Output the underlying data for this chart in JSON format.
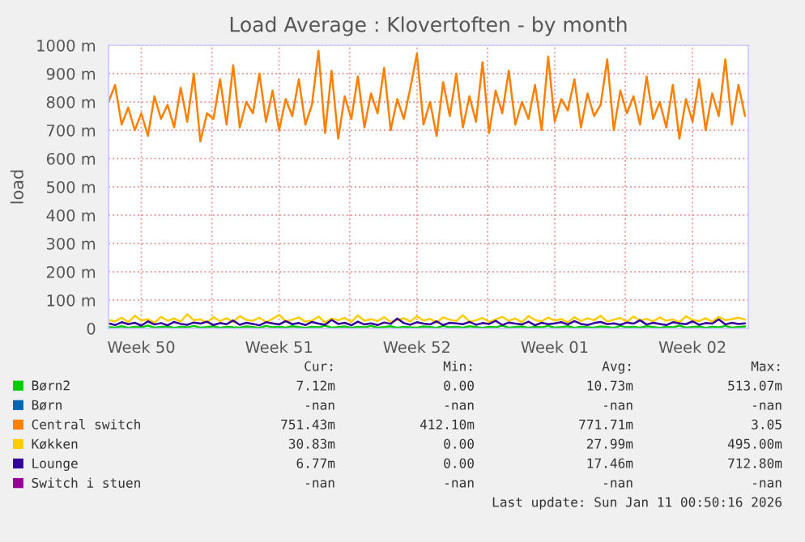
{
  "chart_data": {
    "type": "line",
    "title": "Load Average : Klovertoften - by month",
    "ylabel": "load",
    "x": [
      "2025-12-09T18:00",
      "2025-12-10T02:00",
      "2025-12-10T10:00",
      "2025-12-10T18:00",
      "2025-12-11T02:00",
      "2025-12-11T10:00",
      "2025-12-11T18:00",
      "2025-12-12T02:00",
      "2025-12-12T10:00",
      "2025-12-12T18:00",
      "2025-12-13T02:00",
      "2025-12-13T10:00",
      "2025-12-13T18:00",
      "2025-12-14T02:00",
      "2025-12-14T10:00",
      "2025-12-14T18:00",
      "2025-12-15T02:00",
      "2025-12-15T10:00",
      "2025-12-15T18:00",
      "2025-12-16T02:00",
      "2025-12-16T10:00",
      "2025-12-16T18:00",
      "2025-12-17T02:00",
      "2025-12-17T10:00",
      "2025-12-17T18:00",
      "2025-12-18T02:00",
      "2025-12-18T10:00",
      "2025-12-18T18:00",
      "2025-12-19T02:00",
      "2025-12-19T10:00",
      "2025-12-19T18:00",
      "2025-12-20T02:00",
      "2025-12-20T10:00",
      "2025-12-20T18:00",
      "2025-12-21T02:00",
      "2025-12-21T10:00",
      "2025-12-21T18:00",
      "2025-12-22T02:00",
      "2025-12-22T10:00",
      "2025-12-22T18:00",
      "2025-12-23T02:00",
      "2025-12-23T10:00",
      "2025-12-23T18:00",
      "2025-12-24T02:00",
      "2025-12-24T10:00",
      "2025-12-24T18:00",
      "2025-12-25T02:00",
      "2025-12-25T10:00",
      "2025-12-25T18:00",
      "2025-12-26T02:00",
      "2025-12-26T10:00",
      "2025-12-26T18:00",
      "2025-12-27T02:00",
      "2025-12-27T10:00",
      "2025-12-27T18:00",
      "2025-12-28T02:00",
      "2025-12-28T10:00",
      "2025-12-28T18:00",
      "2025-12-29T02:00",
      "2025-12-29T10:00",
      "2025-12-29T18:00",
      "2025-12-30T02:00",
      "2025-12-30T10:00",
      "2025-12-30T18:00",
      "2025-12-31T02:00",
      "2025-12-31T10:00",
      "2025-12-31T18:00",
      "2026-01-01T02:00",
      "2026-01-01T10:00",
      "2026-01-01T18:00",
      "2026-01-02T02:00",
      "2026-01-02T10:00",
      "2026-01-02T18:00",
      "2026-01-03T02:00",
      "2026-01-03T10:00",
      "2026-01-03T18:00",
      "2026-01-04T02:00",
      "2026-01-04T10:00",
      "2026-01-04T18:00",
      "2026-01-05T02:00",
      "2026-01-05T10:00",
      "2026-01-05T18:00",
      "2026-01-06T02:00",
      "2026-01-06T10:00",
      "2026-01-06T18:00",
      "2026-01-07T02:00",
      "2026-01-07T10:00",
      "2026-01-07T18:00",
      "2026-01-08T02:00",
      "2026-01-08T10:00",
      "2026-01-08T18:00",
      "2026-01-09T02:00",
      "2026-01-09T10:00",
      "2026-01-09T18:00",
      "2026-01-10T02:00",
      "2026-01-10T10:00",
      "2026-01-10T18:00",
      "2026-01-11T02:00"
    ],
    "series": [
      {
        "name": "Børn2",
        "color": "#00cc00",
        "values": [
          5,
          3,
          8,
          2,
          6,
          4,
          10,
          3,
          5,
          7,
          2,
          6,
          4,
          9,
          3,
          5,
          8,
          2,
          6,
          4,
          3,
          7,
          5,
          2,
          9,
          4,
          6,
          3,
          8,
          5,
          2,
          6,
          4,
          10,
          3,
          5,
          7,
          2,
          6,
          4,
          9,
          3,
          5,
          8,
          2,
          6,
          4,
          3,
          7,
          5,
          2,
          9,
          4,
          6,
          3,
          8,
          5,
          2,
          6,
          4,
          10,
          3,
          5,
          7,
          2,
          6,
          4,
          9,
          3,
          5,
          8,
          2,
          6,
          4,
          3,
          7,
          5,
          2,
          9,
          4,
          6,
          3,
          8,
          5,
          2,
          6,
          4,
          10,
          3,
          5,
          7,
          2,
          6,
          4,
          9,
          3,
          5,
          7
        ]
      },
      {
        "name": "Børn",
        "color": "#0066b3",
        "values": [
          null,
          null,
          null,
          null,
          null,
          null,
          null,
          null,
          null,
          null,
          null,
          null,
          null,
          null,
          null,
          null,
          null,
          null,
          null,
          null,
          null,
          null,
          null,
          null,
          null,
          null,
          null,
          null,
          null,
          null,
          null,
          null,
          null,
          null,
          null,
          null,
          null,
          null,
          null,
          null,
          null,
          null,
          null,
          null,
          null,
          null,
          null,
          null,
          null,
          null,
          null,
          null,
          null,
          null,
          null,
          null,
          null,
          null,
          null,
          null,
          null,
          null,
          null,
          null,
          null,
          null,
          null,
          null,
          null,
          null,
          null,
          null,
          null,
          null,
          null,
          null,
          null,
          null,
          null,
          null,
          null,
          null,
          null,
          null,
          null,
          null,
          null,
          null,
          null,
          null,
          null,
          null,
          null,
          null,
          null,
          null,
          null,
          null
        ]
      },
      {
        "name": "Central switch",
        "color": "#ff8000",
        "values": [
          800,
          860,
          720,
          780,
          700,
          760,
          680,
          820,
          740,
          790,
          710,
          850,
          730,
          900,
          660,
          760,
          740,
          880,
          720,
          930,
          710,
          800,
          760,
          900,
          730,
          840,
          700,
          810,
          750,
          880,
          720,
          790,
          980,
          690,
          910,
          670,
          820,
          740,
          890,
          710,
          830,
          760,
          920,
          700,
          810,
          740,
          850,
          970,
          720,
          800,
          680,
          870,
          750,
          900,
          710,
          820,
          730,
          940,
          690,
          840,
          760,
          910,
          720,
          800,
          740,
          860,
          700,
          960,
          730,
          810,
          770,
          880,
          710,
          830,
          750,
          790,
          950,
          700,
          840,
          760,
          820,
          720,
          890,
          740,
          800,
          710,
          860,
          670,
          810,
          730,
          880,
          700,
          830,
          750,
          950,
          720,
          860,
          750
        ]
      },
      {
        "name": "Køkken",
        "color": "#ffcc00",
        "values": [
          30,
          25,
          38,
          22,
          45,
          28,
          33,
          20,
          41,
          27,
          35,
          24,
          50,
          29,
          32,
          21,
          40,
          26,
          36,
          23,
          44,
          30,
          27,
          38,
          22,
          34,
          48,
          25,
          31,
          39,
          24,
          28,
          42,
          21,
          35,
          29,
          37,
          23,
          46,
          27,
          33,
          26,
          40,
          22,
          30,
          36,
          25,
          43,
          28,
          34,
          21,
          39,
          31,
          26,
          47,
          24,
          29,
          37,
          23,
          32,
          41,
          27,
          35,
          22,
          44,
          30,
          25,
          38,
          28,
          33,
          21,
          40,
          26,
          36,
          29,
          45,
          24,
          31,
          37,
          23,
          42,
          28,
          34,
          25,
          39,
          27,
          32,
          22,
          43,
          30,
          26,
          36,
          24,
          41,
          29,
          33,
          38,
          31
        ]
      },
      {
        "name": "Lounge",
        "color": "#330099",
        "values": [
          18,
          12,
          22,
          15,
          20,
          10,
          25,
          14,
          19,
          11,
          23,
          16,
          13,
          21,
          17,
          24,
          12,
          19,
          15,
          28,
          13,
          20,
          16,
          11,
          22,
          18,
          14,
          26,
          15,
          19,
          12,
          23,
          17,
          13,
          30,
          16,
          20,
          11,
          24,
          14,
          18,
          12,
          21,
          16,
          35,
          19,
          13,
          22,
          17,
          14,
          25,
          12,
          20,
          18,
          15,
          23,
          13,
          19,
          16,
          27,
          12,
          21,
          17,
          14,
          24,
          11,
          20,
          15,
          18,
          22,
          14,
          26,
          16,
          12,
          19,
          23,
          15,
          18,
          13,
          21,
          17,
          29,
          14,
          20,
          16,
          12,
          22,
          18,
          15,
          25,
          13,
          19,
          17,
          32,
          14,
          20,
          16,
          18
        ]
      },
      {
        "name": "Switch i stuen",
        "color": "#990099",
        "values": [
          null,
          null,
          null,
          null,
          null,
          null,
          null,
          null,
          null,
          null,
          null,
          null,
          null,
          null,
          null,
          null,
          null,
          null,
          null,
          null,
          null,
          null,
          null,
          null,
          null,
          null,
          null,
          null,
          null,
          null,
          null,
          null,
          null,
          null,
          null,
          null,
          null,
          null,
          null,
          null,
          null,
          null,
          null,
          null,
          null,
          null,
          null,
          null,
          null,
          null,
          null,
          null,
          null,
          null,
          null,
          null,
          null,
          null,
          null,
          null,
          null,
          null,
          null,
          null,
          null,
          null,
          null,
          null,
          null,
          null,
          null,
          null,
          null,
          null,
          null,
          null,
          null,
          null,
          null,
          null,
          null,
          null,
          null,
          null,
          null,
          null,
          null,
          null,
          null,
          null,
          null,
          null,
          null,
          null,
          null,
          null,
          null,
          null
        ]
      }
    ],
    "xlim": [
      "2025-12-09T18:00",
      "2026-01-11T06:00"
    ],
    "xticks": [
      {
        "value": "2025-12-11T10:00",
        "label": "Week 50"
      },
      {
        "value": "2025-12-15",
        "label": null
      },
      {
        "value": "2025-12-18T10:00",
        "label": "Week 51"
      },
      {
        "value": "2025-12-22",
        "label": null
      },
      {
        "value": "2025-12-25T10:00",
        "label": "Week 52"
      },
      {
        "value": "2025-12-29",
        "label": null
      },
      {
        "value": "2026-01-01T10:00",
        "label": "Week 01"
      },
      {
        "value": "2026-01-05",
        "label": null
      },
      {
        "value": "2026-01-08T10:00",
        "label": "Week 02"
      }
    ],
    "ylim": [
      0,
      1000
    ],
    "yticks": [
      0,
      {
        "value": 100,
        "label": "100 m"
      },
      {
        "value": 200,
        "label": "200 m"
      },
      {
        "value": 300,
        "label": "300 m"
      },
      {
        "value": 400,
        "label": "400 m"
      },
      {
        "value": 500,
        "label": "500 m"
      },
      {
        "value": 600,
        "label": "600 m"
      },
      {
        "value": 700,
        "label": "700 m"
      },
      {
        "value": 800,
        "label": "800 m"
      },
      {
        "value": 900,
        "label": "900 m"
      },
      {
        "value": 1000,
        "label": "1000 m"
      }
    ],
    "grid": true,
    "legend": "bottom",
    "marker": "none",
    "line_style": "solid",
    "annotations": [
      "Cur:",
      "Min:",
      "Avg:",
      "Max:",
      "7.12m",
      "0.00",
      "10.73m",
      "513.07m",
      "-nan",
      "-nan",
      "-nan",
      "-nan",
      "751.43m",
      "412.10m",
      "771.71m",
      "3.05",
      "30.83m",
      "0.00",
      "27.99m",
      "495.00m",
      "6.77m",
      "0.00",
      "17.46m",
      "712.80m",
      "-nan",
      "-nan",
      "-nan",
      "-nan",
      "Last update: Sun Jan 11 00:50:16 2026"
    ]
  }
}
